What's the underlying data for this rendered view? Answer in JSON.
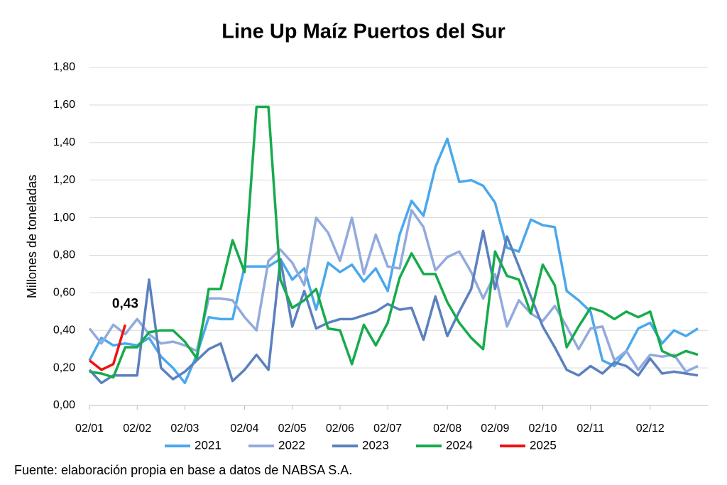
{
  "chart_data": {
    "type": "line",
    "title": "Line Up Maíz Puertos del Sur",
    "ylabel": "Millones de toneladas",
    "source": "Fuente: elaboración propia en base a datos de NABSA S.A.",
    "categories": [
      "02/01",
      null,
      null,
      null,
      "02/02",
      null,
      null,
      null,
      "02/03",
      null,
      null,
      null,
      null,
      "02/04",
      null,
      null,
      null,
      "02/05",
      null,
      null,
      null,
      "02/06",
      null,
      null,
      null,
      "02/07",
      null,
      null,
      null,
      null,
      "02/08",
      null,
      null,
      null,
      "02/09",
      null,
      null,
      null,
      "02/10",
      null,
      null,
      null,
      "02/11",
      null,
      null,
      null,
      null,
      "02/12",
      null,
      null,
      null,
      null
    ],
    "ylim": [
      0,
      1.8
    ],
    "yticks": [
      {
        "value": 0,
        "label": "0,00"
      },
      {
        "value": 0.2,
        "label": "0,20"
      },
      {
        "value": 0.4,
        "label": "0,40"
      },
      {
        "value": 0.6,
        "label": "0,60"
      },
      {
        "value": 0.8,
        "label": "0,80"
      },
      {
        "value": 1.0,
        "label": "1,00"
      },
      {
        "value": 1.2,
        "label": "1,20"
      },
      {
        "value": 1.4,
        "label": "1,40"
      },
      {
        "value": 1.6,
        "label": "1,60"
      },
      {
        "value": 1.8,
        "label": "1,80"
      }
    ],
    "grid": true,
    "legend": "bottom",
    "series": [
      {
        "name": "2021",
        "color": "#4aa8ec",
        "values": [
          0.24,
          0.36,
          0.32,
          0.33,
          0.32,
          0.36,
          0.26,
          0.2,
          0.12,
          0.27,
          0.47,
          0.46,
          0.46,
          0.74,
          0.74,
          0.74,
          0.78,
          0.67,
          0.73,
          0.51,
          0.76,
          0.71,
          0.75,
          0.66,
          0.73,
          0.61,
          0.91,
          1.09,
          1.01,
          1.27,
          1.42,
          1.19,
          1.2,
          1.17,
          1.08,
          0.84,
          0.82,
          0.99,
          0.96,
          0.95,
          0.61,
          0.56,
          0.5,
          0.24,
          0.21,
          0.29,
          0.41,
          0.44,
          0.33,
          0.4,
          0.37,
          0.41
        ]
      },
      {
        "name": "2022",
        "color": "#92aadd",
        "values": [
          0.41,
          0.33,
          0.43,
          0.38,
          0.46,
          0.38,
          0.33,
          0.34,
          0.32,
          0.29,
          0.57,
          0.57,
          0.56,
          0.47,
          0.4,
          0.77,
          0.83,
          0.76,
          0.64,
          1.0,
          0.92,
          0.77,
          1.0,
          0.7,
          0.91,
          0.74,
          0.73,
          1.04,
          0.95,
          0.72,
          0.79,
          0.82,
          0.71,
          0.57,
          0.7,
          0.42,
          0.56,
          0.49,
          0.45,
          0.53,
          0.42,
          0.3,
          0.41,
          0.42,
          0.24,
          0.29,
          0.19,
          0.27,
          0.26,
          0.27,
          0.18,
          0.21
        ]
      },
      {
        "name": "2023",
        "color": "#5b80bf",
        "values": [
          0.19,
          0.12,
          0.16,
          0.16,
          0.16,
          0.67,
          0.2,
          0.14,
          0.18,
          0.24,
          0.3,
          0.33,
          0.13,
          0.19,
          0.27,
          0.19,
          0.78,
          0.42,
          0.61,
          0.41,
          0.44,
          0.46,
          0.46,
          0.48,
          0.5,
          0.54,
          0.51,
          0.52,
          0.35,
          0.58,
          0.37,
          0.5,
          0.62,
          0.93,
          0.62,
          0.9,
          0.74,
          0.58,
          0.42,
          0.31,
          0.19,
          0.16,
          0.21,
          0.17,
          0.23,
          0.21,
          0.16,
          0.25,
          0.17,
          0.18,
          0.17,
          0.16
        ]
      },
      {
        "name": "2024",
        "color": "#16ab4c",
        "values": [
          0.18,
          0.17,
          0.15,
          0.31,
          0.31,
          0.39,
          0.4,
          0.4,
          0.34,
          0.25,
          0.62,
          0.62,
          0.88,
          0.71,
          1.59,
          1.59,
          0.67,
          0.52,
          0.56,
          0.62,
          0.41,
          0.4,
          0.22,
          0.43,
          0.32,
          0.44,
          0.68,
          0.81,
          0.7,
          0.7,
          0.55,
          0.44,
          0.36,
          0.3,
          0.82,
          0.69,
          0.67,
          0.49,
          0.75,
          0.64,
          0.31,
          0.42,
          0.52,
          0.5,
          0.46,
          0.5,
          0.47,
          0.5,
          0.29,
          0.26,
          0.29,
          0.27
        ]
      },
      {
        "name": "2025",
        "color": "#ee1111",
        "values": [
          0.24,
          0.19,
          0.22,
          0.43,
          null,
          null,
          null,
          null,
          null,
          null,
          null,
          null,
          null,
          null,
          null,
          null,
          null,
          null,
          null,
          null,
          null,
          null,
          null,
          null,
          null,
          null,
          null,
          null,
          null,
          null,
          null,
          null,
          null,
          null,
          null,
          null,
          null,
          null,
          null,
          null,
          null,
          null,
          null,
          null,
          null,
          null,
          null,
          null,
          null,
          null,
          null,
          null
        ],
        "value_labels": [
          null,
          null,
          null,
          "0,43",
          null,
          null,
          null,
          null,
          null,
          null,
          null,
          null,
          null,
          null,
          null,
          null,
          null,
          null,
          null,
          null,
          null,
          null,
          null,
          null,
          null,
          null,
          null,
          null,
          null,
          null,
          null,
          null,
          null,
          null,
          null,
          null,
          null,
          null,
          null,
          null,
          null,
          null,
          null,
          null,
          null,
          null,
          null,
          null,
          null,
          null,
          null,
          null
        ]
      }
    ]
  }
}
